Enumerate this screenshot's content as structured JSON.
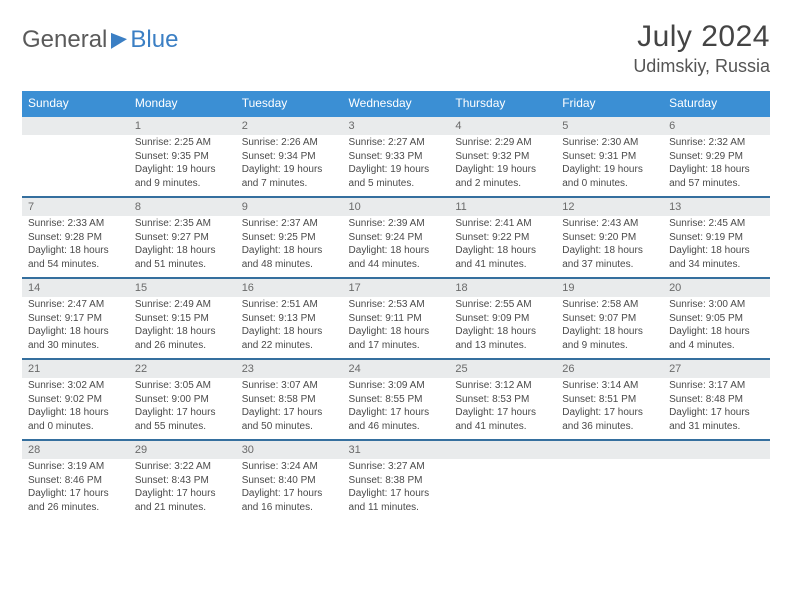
{
  "brand": {
    "part1": "General",
    "part2": "Blue"
  },
  "title": "July 2024",
  "location": "Udimskiy, Russia",
  "colors": {
    "header_bg": "#3b8fd4",
    "header_text": "#ffffff",
    "daynum_bg": "#e9ebec",
    "daynum_text": "#6a6a6a",
    "divider": "#356f9e",
    "body_text": "#4a4a4a"
  },
  "weekdays": [
    "Sunday",
    "Monday",
    "Tuesday",
    "Wednesday",
    "Thursday",
    "Friday",
    "Saturday"
  ],
  "weeks": [
    {
      "nums": [
        "",
        "1",
        "2",
        "3",
        "4",
        "5",
        "6"
      ],
      "cells": [
        {
          "sunrise": "",
          "sunset": "",
          "daylight1": "",
          "daylight2": ""
        },
        {
          "sunrise": "Sunrise: 2:25 AM",
          "sunset": "Sunset: 9:35 PM",
          "daylight1": "Daylight: 19 hours",
          "daylight2": "and 9 minutes."
        },
        {
          "sunrise": "Sunrise: 2:26 AM",
          "sunset": "Sunset: 9:34 PM",
          "daylight1": "Daylight: 19 hours",
          "daylight2": "and 7 minutes."
        },
        {
          "sunrise": "Sunrise: 2:27 AM",
          "sunset": "Sunset: 9:33 PM",
          "daylight1": "Daylight: 19 hours",
          "daylight2": "and 5 minutes."
        },
        {
          "sunrise": "Sunrise: 2:29 AM",
          "sunset": "Sunset: 9:32 PM",
          "daylight1": "Daylight: 19 hours",
          "daylight2": "and 2 minutes."
        },
        {
          "sunrise": "Sunrise: 2:30 AM",
          "sunset": "Sunset: 9:31 PM",
          "daylight1": "Daylight: 19 hours",
          "daylight2": "and 0 minutes."
        },
        {
          "sunrise": "Sunrise: 2:32 AM",
          "sunset": "Sunset: 9:29 PM",
          "daylight1": "Daylight: 18 hours",
          "daylight2": "and 57 minutes."
        }
      ]
    },
    {
      "nums": [
        "7",
        "8",
        "9",
        "10",
        "11",
        "12",
        "13"
      ],
      "cells": [
        {
          "sunrise": "Sunrise: 2:33 AM",
          "sunset": "Sunset: 9:28 PM",
          "daylight1": "Daylight: 18 hours",
          "daylight2": "and 54 minutes."
        },
        {
          "sunrise": "Sunrise: 2:35 AM",
          "sunset": "Sunset: 9:27 PM",
          "daylight1": "Daylight: 18 hours",
          "daylight2": "and 51 minutes."
        },
        {
          "sunrise": "Sunrise: 2:37 AM",
          "sunset": "Sunset: 9:25 PM",
          "daylight1": "Daylight: 18 hours",
          "daylight2": "and 48 minutes."
        },
        {
          "sunrise": "Sunrise: 2:39 AM",
          "sunset": "Sunset: 9:24 PM",
          "daylight1": "Daylight: 18 hours",
          "daylight2": "and 44 minutes."
        },
        {
          "sunrise": "Sunrise: 2:41 AM",
          "sunset": "Sunset: 9:22 PM",
          "daylight1": "Daylight: 18 hours",
          "daylight2": "and 41 minutes."
        },
        {
          "sunrise": "Sunrise: 2:43 AM",
          "sunset": "Sunset: 9:20 PM",
          "daylight1": "Daylight: 18 hours",
          "daylight2": "and 37 minutes."
        },
        {
          "sunrise": "Sunrise: 2:45 AM",
          "sunset": "Sunset: 9:19 PM",
          "daylight1": "Daylight: 18 hours",
          "daylight2": "and 34 minutes."
        }
      ]
    },
    {
      "nums": [
        "14",
        "15",
        "16",
        "17",
        "18",
        "19",
        "20"
      ],
      "cells": [
        {
          "sunrise": "Sunrise: 2:47 AM",
          "sunset": "Sunset: 9:17 PM",
          "daylight1": "Daylight: 18 hours",
          "daylight2": "and 30 minutes."
        },
        {
          "sunrise": "Sunrise: 2:49 AM",
          "sunset": "Sunset: 9:15 PM",
          "daylight1": "Daylight: 18 hours",
          "daylight2": "and 26 minutes."
        },
        {
          "sunrise": "Sunrise: 2:51 AM",
          "sunset": "Sunset: 9:13 PM",
          "daylight1": "Daylight: 18 hours",
          "daylight2": "and 22 minutes."
        },
        {
          "sunrise": "Sunrise: 2:53 AM",
          "sunset": "Sunset: 9:11 PM",
          "daylight1": "Daylight: 18 hours",
          "daylight2": "and 17 minutes."
        },
        {
          "sunrise": "Sunrise: 2:55 AM",
          "sunset": "Sunset: 9:09 PM",
          "daylight1": "Daylight: 18 hours",
          "daylight2": "and 13 minutes."
        },
        {
          "sunrise": "Sunrise: 2:58 AM",
          "sunset": "Sunset: 9:07 PM",
          "daylight1": "Daylight: 18 hours",
          "daylight2": "and 9 minutes."
        },
        {
          "sunrise": "Sunrise: 3:00 AM",
          "sunset": "Sunset: 9:05 PM",
          "daylight1": "Daylight: 18 hours",
          "daylight2": "and 4 minutes."
        }
      ]
    },
    {
      "nums": [
        "21",
        "22",
        "23",
        "24",
        "25",
        "26",
        "27"
      ],
      "cells": [
        {
          "sunrise": "Sunrise: 3:02 AM",
          "sunset": "Sunset: 9:02 PM",
          "daylight1": "Daylight: 18 hours",
          "daylight2": "and 0 minutes."
        },
        {
          "sunrise": "Sunrise: 3:05 AM",
          "sunset": "Sunset: 9:00 PM",
          "daylight1": "Daylight: 17 hours",
          "daylight2": "and 55 minutes."
        },
        {
          "sunrise": "Sunrise: 3:07 AM",
          "sunset": "Sunset: 8:58 PM",
          "daylight1": "Daylight: 17 hours",
          "daylight2": "and 50 minutes."
        },
        {
          "sunrise": "Sunrise: 3:09 AM",
          "sunset": "Sunset: 8:55 PM",
          "daylight1": "Daylight: 17 hours",
          "daylight2": "and 46 minutes."
        },
        {
          "sunrise": "Sunrise: 3:12 AM",
          "sunset": "Sunset: 8:53 PM",
          "daylight1": "Daylight: 17 hours",
          "daylight2": "and 41 minutes."
        },
        {
          "sunrise": "Sunrise: 3:14 AM",
          "sunset": "Sunset: 8:51 PM",
          "daylight1": "Daylight: 17 hours",
          "daylight2": "and 36 minutes."
        },
        {
          "sunrise": "Sunrise: 3:17 AM",
          "sunset": "Sunset: 8:48 PM",
          "daylight1": "Daylight: 17 hours",
          "daylight2": "and 31 minutes."
        }
      ]
    },
    {
      "nums": [
        "28",
        "29",
        "30",
        "31",
        "",
        "",
        ""
      ],
      "cells": [
        {
          "sunrise": "Sunrise: 3:19 AM",
          "sunset": "Sunset: 8:46 PM",
          "daylight1": "Daylight: 17 hours",
          "daylight2": "and 26 minutes."
        },
        {
          "sunrise": "Sunrise: 3:22 AM",
          "sunset": "Sunset: 8:43 PM",
          "daylight1": "Daylight: 17 hours",
          "daylight2": "and 21 minutes."
        },
        {
          "sunrise": "Sunrise: 3:24 AM",
          "sunset": "Sunset: 8:40 PM",
          "daylight1": "Daylight: 17 hours",
          "daylight2": "and 16 minutes."
        },
        {
          "sunrise": "Sunrise: 3:27 AM",
          "sunset": "Sunset: 8:38 PM",
          "daylight1": "Daylight: 17 hours",
          "daylight2": "and 11 minutes."
        },
        {
          "sunrise": "",
          "sunset": "",
          "daylight1": "",
          "daylight2": ""
        },
        {
          "sunrise": "",
          "sunset": "",
          "daylight1": "",
          "daylight2": ""
        },
        {
          "sunrise": "",
          "sunset": "",
          "daylight1": "",
          "daylight2": ""
        }
      ]
    }
  ]
}
